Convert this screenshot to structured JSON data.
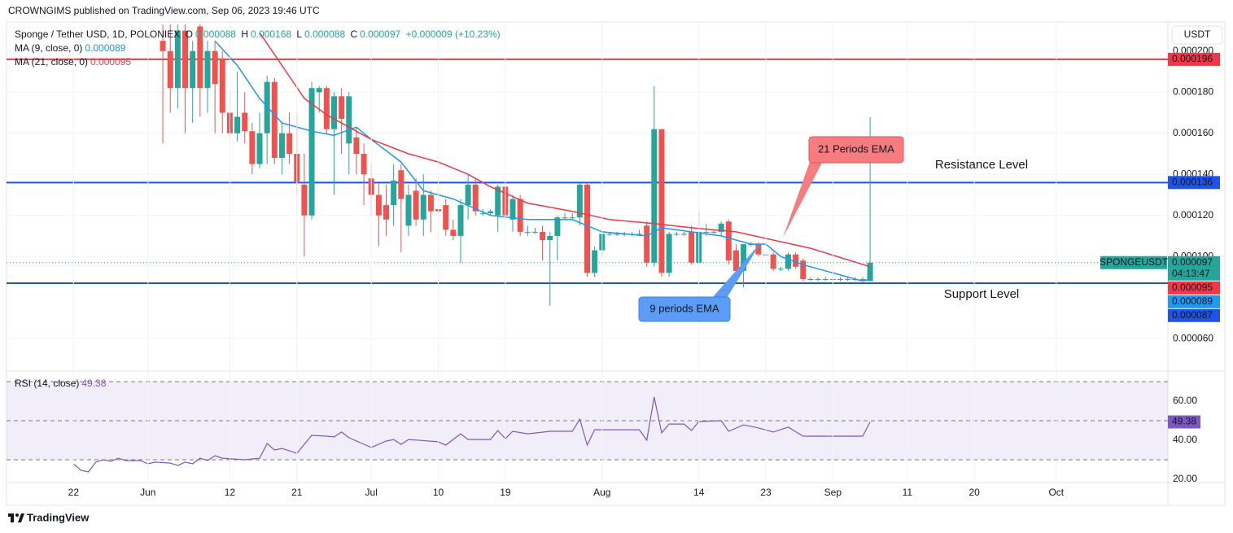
{
  "publisher": "CROWNGIMS published on TradingView.com, Sep 06, 2023 19:46 UTC",
  "footer": "TradingView",
  "chart_data": {
    "type": "candlestick",
    "title": "Sponge / Tether USD, 1D, POLONIEX",
    "ohlc_labels": [
      "O",
      "H",
      "L",
      "C"
    ],
    "change": "+0.000009 (+10.23%)",
    "currency": "USDT",
    "symbol_label": "SPONGEUSDT",
    "countdown": "04:13:47",
    "up_color": "#26a69a",
    "down_color": "#ef5350",
    "x": [
      "Jun 3",
      "Jun 4",
      "Jun 5",
      "Jun 6",
      "Jun 7",
      "Jun 8",
      "Jun 9",
      "Jun 10",
      "Jun 11",
      "Jun 12",
      "Jun 13",
      "Jun 14",
      "Jun 15",
      "Jun 16",
      "Jun 17",
      "Jun 18",
      "Jun 19",
      "Jun 20",
      "Jun 21",
      "Jun 22",
      "Jun 23",
      "Jun 24",
      "Jun 25",
      "Jun 26",
      "Jun 27",
      "Jun 28",
      "Jun 29",
      "Jun 30",
      "Jul 1",
      "Jul 2",
      "Jul 3",
      "Jul 4",
      "Jul 5",
      "Jul 6",
      "Jul 7",
      "Jul 8",
      "Jul 9",
      "Jul 10",
      "Jul 11",
      "Jul 12",
      "Jul 13",
      "Jul 14",
      "Jul 15",
      "Jul 16",
      "Jul 17",
      "Jul 18",
      "Jul 19",
      "Jul 20",
      "Jul 21",
      "Jul 22",
      "Jul 23",
      "Jul 24",
      "Jul 25",
      "Jul 26",
      "Jul 27",
      "Jul 28",
      "Jul 29",
      "Jul 30",
      "Jul 31",
      "Aug 1",
      "Aug 2",
      "Aug 3",
      "Aug 4",
      "Aug 5",
      "Aug 6",
      "Aug 7",
      "Aug 8",
      "Aug 9",
      "Aug 10",
      "Aug 11",
      "Aug 12",
      "Aug 13",
      "Aug 14",
      "Aug 15",
      "Aug 16",
      "Aug 17",
      "Aug 18",
      "Aug 19",
      "Aug 20",
      "Aug 21",
      "Aug 22",
      "Aug 23",
      "Aug 24",
      "Aug 25",
      "Aug 26",
      "Aug 27",
      "Aug 28",
      "Aug 29",
      "Aug 30",
      "Aug 31",
      "Sep 1",
      "Sep 2",
      "Sep 3",
      "Sep 4",
      "Sep 5",
      "Sep 6"
    ],
    "open": [
      0.000205,
      0.0002,
      0.000182,
      0.00021,
      0.000182,
      0.000212,
      0.000182,
      0.0002,
      0.000196,
      0.00017,
      0.00016,
      0.00017,
      0.000161,
      0.000145,
      0.00016,
      0.000185,
      0.000148,
      0.00016,
      0.00015,
      0.000135,
      0.00012,
      0.00018,
      0.000182,
      0.000162,
      0.000178,
      0.000155,
      0.000158,
      0.00015,
      0.000138,
      0.00013,
      0.000125,
      0.000125,
      0.000142,
      0.000115,
      0.000132,
      0.000118,
      0.00013,
      0.000123,
      0.000125,
      0.000113,
      0.00011,
      0.000125,
      0.000135,
      0.000121,
      0.000121,
      0.00012,
      0.000134,
      0.000118,
      0.000128,
      0.000112,
      0.000112,
      0.000112,
      0.000108,
      0.00011,
      0.000119,
      0.000119,
      0.000119,
      0.000135,
      9.2e-05,
      0.000103,
      0.000111,
      0.000111,
      0.000111,
      0.000111,
      0.000111,
      0.000115,
      9.7e-05,
      0.000162,
      9.2e-05,
      0.000111,
      0.000111,
      0.000112,
      9.7e-05,
      0.000112,
      0.000112,
      0.000112,
      0.000117,
      0.000103,
      9.3e-05,
      0.000106,
      0.000106,
      0.000101,
      0.000101,
      9.4e-05,
      9.4e-05,
      0.000101,
      9.8e-05,
      8.9e-05,
      8.9e-05,
      8.9e-05,
      8.9e-05,
      8.9e-05,
      8.9e-05,
      8.9e-05,
      8.9e-05,
      8.8e-05
    ],
    "high": [
      0.000213,
      0.000213,
      0.000213,
      0.000213,
      0.000205,
      0.000213,
      0.000205,
      0.000205,
      0.0002,
      0.00018,
      0.00019,
      0.00018,
      0.000165,
      0.00017,
      0.000188,
      0.000187,
      0.000165,
      0.00017,
      0.00017,
      0.00015,
      0.000185,
      0.000183,
      0.000183,
      0.00018,
      0.000182,
      0.00018,
      0.000163,
      0.000155,
      0.000145,
      0.000136,
      0.000135,
      0.000145,
      0.000145,
      0.000135,
      0.000138,
      0.00014,
      0.000132,
      0.000128,
      0.000128,
      0.000118,
      0.000128,
      0.00014,
      0.000138,
      0.000123,
      0.000123,
      0.000135,
      0.000136,
      0.00013,
      0.00013,
      0.000115,
      0.000114,
      0.000115,
      0.000112,
      0.00012,
      0.000121,
      0.000121,
      0.000136,
      0.000136,
      0.000105,
      0.000112,
      0.000112,
      0.000112,
      0.000112,
      0.000112,
      0.000113,
      0.000117,
      0.000183,
      0.000162,
      0.000112,
      0.000112,
      0.000112,
      0.000115,
      0.000122,
      0.000116,
      0.000113,
      0.000117,
      0.000118,
      0.000106,
      0.000106,
      0.000107,
      0.000107,
      0.000102,
      0.000102,
      9.5e-05,
      0.000102,
      0.000102,
      9.9e-05,
      9e-05,
      9e-05,
      9e-05,
      9e-05,
      9e-05,
      9e-05,
      9e-05,
      9e-05,
      0.000168
    ],
    "low": [
      0.000155,
      0.00017,
      0.000172,
      0.00016,
      0.000165,
      0.000168,
      0.00017,
      0.00016,
      0.00016,
      0.000157,
      0.000156,
      0.000155,
      0.00014,
      0.000143,
      0.000145,
      0.000145,
      0.00014,
      0.000145,
      0.00013,
      0.0001,
      0.000118,
      0.00017,
      0.00016,
      0.00013,
      0.00015,
      0.00014,
      0.00014,
      0.000125,
      0.00012,
      0.000105,
      0.00011,
      0.000115,
      0.000102,
      0.00011,
      0.000115,
      0.00011,
      0.000112,
      0.000118,
      0.00011,
      0.000108,
      9.7e-05,
      0.000118,
      0.00012,
      0.00012,
      0.00012,
      0.000112,
      0.000118,
      0.000112,
      0.00011,
      0.00011,
      0.000111,
      9.8e-05,
      7.6e-05,
      9.8e-05,
      0.000118,
      0.000118,
      0.000115,
      9e-05,
      9e-05,
      0.0001,
      0.00011,
      0.00011,
      0.00011,
      0.00011,
      0.00011,
      9.5e-05,
      9.5e-05,
      9e-05,
      9e-05,
      0.00011,
      0.00011,
      9.6e-05,
      9.6e-05,
      0.00011,
      0.000111,
      0.00011,
      9.6e-05,
      9.1e-05,
      8.5e-05,
      0.000105,
      0.0001,
      0.0001,
      9.3e-05,
      9.3e-05,
      9.3e-05,
      9.4e-05,
      8.8e-05,
      8.8e-05,
      8.8e-05,
      8.8e-05,
      8.8e-05,
      8.8e-05,
      8.8e-05,
      8.8e-05,
      8.8e-05,
      8.8e-05
    ],
    "close": [
      0.0002,
      0.000182,
      0.00021,
      0.000182,
      0.0002,
      0.000182,
      0.0002,
      0.000184,
      0.00017,
      0.00016,
      0.000168,
      0.000161,
      0.000145,
      0.00016,
      0.000185,
      0.000148,
      0.00016,
      0.00015,
      0.000136,
      0.00012,
      0.000182,
      0.000182,
      0.000162,
      0.000178,
      0.000167,
      0.000178,
      0.00015,
      0.00014,
      0.00013,
      0.00012,
      0.000118,
      0.000137,
      0.000128,
      0.00013,
      0.000118,
      0.00013,
      0.000122,
      0.000122,
      0.000113,
      0.00011,
      0.000125,
      0.000135,
      0.000122,
      0.000121,
      0.000122,
      0.000134,
      0.00012,
      0.000128,
      0.000112,
      0.000112,
      0.000112,
      0.000108,
      0.00011,
      0.000119,
      0.000119,
      0.000119,
      0.000135,
      9.2e-05,
      0.000103,
      0.000111,
      0.000111,
      0.000111,
      0.000111,
      0.000111,
      0.000111,
      9.7e-05,
      0.000162,
      9.2e-05,
      0.000111,
      0.000111,
      0.000111,
      9.7e-05,
      0.000112,
      0.000112,
      0.000112,
      0.000116,
      9.8e-05,
      9.3e-05,
      0.000106,
      0.000106,
      0.000101,
      0.000101,
      9.4e-05,
      9.4e-05,
      0.000101,
      9.5e-05,
      8.9e-05,
      8.9e-05,
      8.9e-05,
      8.9e-05,
      8.9e-05,
      8.9e-05,
      8.9e-05,
      8.9e-05,
      8.8e-05,
      9.7e-05
    ],
    "series": [
      {
        "name": "MA (9, close, 0)",
        "color": "#2196f3",
        "x": [
          "Jun 10",
          "Jun 13",
          "Jun 16",
          "Jun 19",
          "Jun 23",
          "Jun 26",
          "Jun 29",
          "Jul 1",
          "Jul 5",
          "Jul 8",
          "Jul 12",
          "Jul 17",
          "Jul 22",
          "Jul 28",
          "Aug 1",
          "Aug 7",
          "Aug 9",
          "Aug 13",
          "Aug 17",
          "Aug 21",
          "Aug 23",
          "Aug 25",
          "Aug 28",
          "Sep 1",
          "Sep 5",
          "Sep 6"
        ],
        "values": [
          0.000205,
          0.000193,
          0.000177,
          0.000165,
          0.000161,
          0.000159,
          0.000163,
          0.000157,
          0.000146,
          0.000132,
          0.000128,
          0.00012,
          0.000118,
          0.000118,
          0.000112,
          0.00011,
          0.000114,
          0.000112,
          0.00011,
          0.000106,
          0.000106,
          0.0001,
          9.6e-05,
          9.2e-05,
          8.8e-05,
          8.9e-05
        ]
      },
      {
        "name": "MA (21, close, 0)",
        "color": "#f23645",
        "x": [
          "Jun 16",
          "Jun 19",
          "Jun 22",
          "Jun 25",
          "Jun 28",
          "Jul 1",
          "Jul 6",
          "Jul 10",
          "Jul 14",
          "Jul 17",
          "Jul 22",
          "Jul 28",
          "Aug 2",
          "Aug 8",
          "Aug 13",
          "Aug 19",
          "Aug 24",
          "Aug 29",
          "Sep 6"
        ],
        "values": [
          0.000209,
          0.000193,
          0.000177,
          0.000169,
          0.000163,
          0.000157,
          0.00015,
          0.000146,
          0.00014,
          0.000134,
          0.000126,
          0.000122,
          0.000118,
          0.000116,
          0.000114,
          0.000112,
          0.000108,
          0.000104,
          9.5e-05
        ]
      }
    ],
    "levels": [
      {
        "value": 0.000196,
        "color": "#f23645"
      },
      {
        "value": 0.000136,
        "color": "#1e53e5"
      },
      {
        "value": 8.7e-05,
        "color": "#1e53e5"
      }
    ],
    "annotations": [
      {
        "text": "Resistance Level",
        "color": "#f23645"
      },
      {
        "text": "Support Level",
        "color": "#2962ff"
      },
      {
        "text": "21 Periods EMA",
        "color": "#f77c80"
      },
      {
        "text": "9 periods EMA",
        "color": "#5b9cf6"
      }
    ],
    "xlim": [
      "May 13",
      "Oct 16"
    ],
    "xticks": [
      {
        "value": "May 22",
        "label": "22"
      },
      {
        "value": "Jun 1",
        "label": "Jun"
      },
      {
        "value": "Jun 12",
        "label": "12"
      },
      {
        "value": "Jun 21",
        "label": "21"
      },
      {
        "value": "Jul 1",
        "label": "Jul"
      },
      {
        "value": "Jul 10",
        "label": "10"
      },
      {
        "value": "Jul 19",
        "label": "19"
      },
      {
        "value": "Aug 1",
        "label": "Aug"
      },
      {
        "value": "Aug 14",
        "label": "14"
      },
      {
        "value": "Aug 23",
        "label": "23"
      },
      {
        "value": "Sep 1",
        "label": "Sep"
      },
      {
        "value": "Sep 11",
        "label": "11"
      },
      {
        "value": "Sep 20",
        "label": "20"
      },
      {
        "value": "Oct 1",
        "label": "Oct"
      }
    ],
    "ylim": [
      4.46e-05,
      0.000213
    ],
    "yticks": [
      {
        "value": 6e-05,
        "label": "0.000060"
      },
      {
        "value": 0.0001,
        "label": "0.000100"
      },
      {
        "value": 0.00012,
        "label": "0.000120"
      },
      {
        "value": 0.00014,
        "label": "0.000140"
      },
      {
        "value": 0.00016,
        "label": "0.000160"
      },
      {
        "value": 0.00018,
        "label": "0.000180"
      },
      {
        "value": 0.0002,
        "label": "0.000200"
      }
    ],
    "grid": true,
    "rsi": {
      "name": "RSI (14, close)",
      "color": "#7e57c2",
      "x": [
        "May 22",
        "May 23",
        "May 24",
        "May 25",
        "May 26",
        "May 27",
        "May 28",
        "May 29",
        "May 31",
        "Jun 1",
        "Jun 2",
        "Jun 4",
        "Jun 5",
        "Jun 6",
        "Jun 7",
        "Jun 8",
        "Jun 9",
        "Jun 10",
        "Jun 11",
        "Jun 14",
        "Jun 16",
        "Jun 17",
        "Jun 18",
        "Jun 19",
        "Jun 21",
        "Jun 23",
        "Jun 25",
        "Jun 26",
        "Jun 27",
        "Jun 28",
        "Jul 1",
        "Jul 3",
        "Jul 4",
        "Jul 5",
        "Jul 6",
        "Jul 10",
        "Jul 11",
        "Jul 13",
        "Jul 14",
        "Jul 17",
        "Jul 18",
        "Jul 19",
        "Jul 20",
        "Jul 22",
        "Jul 25",
        "Jul 28",
        "Jul 29",
        "Jul 30",
        "Jul 31",
        "Aug 6",
        "Aug 7",
        "Aug 8",
        "Aug 9",
        "Aug 10",
        "Aug 12",
        "Aug 13",
        "Aug 14",
        "Aug 17",
        "Aug 18",
        "Aug 20",
        "Aug 22",
        "Aug 24",
        "Aug 26",
        "Aug 28",
        "Sep 5",
        "Sep 6"
      ],
      "values": [
        27.9,
        24.6,
        23.8,
        28.8,
        30,
        29.2,
        30.8,
        29.6,
        29.6,
        27.9,
        28.8,
        28.3,
        27.1,
        28.8,
        27.9,
        30.8,
        29.6,
        32.1,
        30.8,
        30,
        30.8,
        38.3,
        35,
        35.8,
        33.3,
        42.5,
        42.1,
        41.7,
        44.2,
        41.3,
        36.3,
        39.6,
        40.4,
        37.9,
        40.4,
        39.2,
        37.5,
        43.3,
        40.4,
        40.4,
        45,
        40.8,
        44.6,
        43.3,
        44.6,
        44.6,
        50.8,
        37.5,
        45.4,
        45.4,
        40,
        62.1,
        43.8,
        48.3,
        48.3,
        45,
        49.6,
        50,
        44.6,
        47.9,
        46.3,
        44.2,
        46.7,
        42.1,
        42.1,
        49.38
      ],
      "ylim": [
        18.75,
        74.6
      ],
      "yticks": [
        {
          "value": 20,
          "label": "20.00"
        },
        {
          "value": 40,
          "label": "40.00"
        },
        {
          "value": 60,
          "label": "60.00"
        }
      ],
      "band": [
        30,
        70
      ],
      "midline": 50
    }
  }
}
